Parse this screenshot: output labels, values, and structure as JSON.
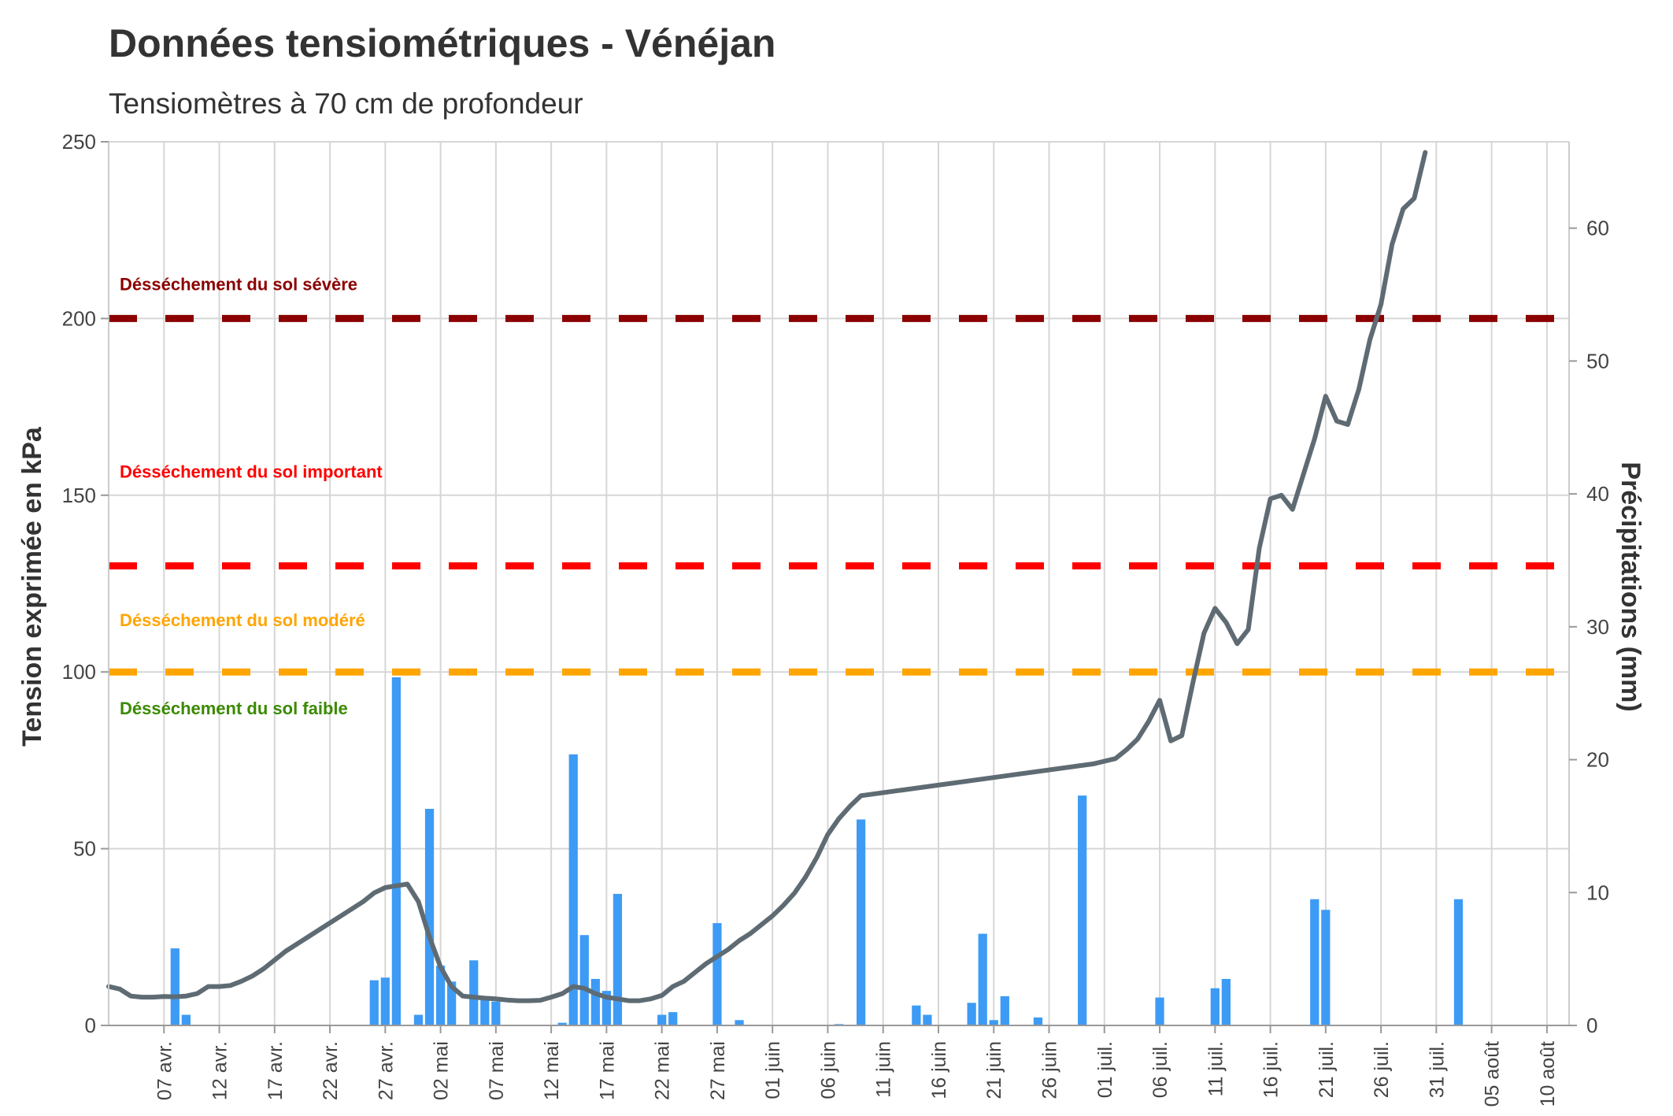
{
  "chart_data": {
    "type": "bar+line",
    "title": "Données tensiométriques - Vénéjan",
    "subtitle": "Tensiomètres à 70 cm de profondeur",
    "ylabel_left": "Tension exprimée en kPa",
    "ylabel_right": "Précipitations (mm)",
    "ylim_left": [
      0,
      250
    ],
    "ylim_right": [
      0,
      66.5
    ],
    "xlim": [
      "2023-04-02",
      "2023-08-12"
    ],
    "grid": true,
    "left_ticks": [
      "0",
      "50",
      "100",
      "150",
      "200",
      "250"
    ],
    "left_tick_values": [
      0,
      50,
      100,
      150,
      200,
      250
    ],
    "right_ticks": [
      "0",
      "10",
      "20",
      "30",
      "40",
      "50",
      "60"
    ],
    "right_tick_values": [
      0,
      10,
      20,
      30,
      40,
      50,
      60
    ],
    "x_ticks": [
      {
        "date": "2023-04-07",
        "label": "07 avr."
      },
      {
        "date": "2023-04-12",
        "label": "12 avr."
      },
      {
        "date": "2023-04-17",
        "label": "17 avr."
      },
      {
        "date": "2023-04-22",
        "label": "22 avr."
      },
      {
        "date": "2023-04-27",
        "label": "27 avr."
      },
      {
        "date": "2023-05-02",
        "label": "02 mai"
      },
      {
        "date": "2023-05-07",
        "label": "07 mai"
      },
      {
        "date": "2023-05-12",
        "label": "12 mai"
      },
      {
        "date": "2023-05-17",
        "label": "17 mai"
      },
      {
        "date": "2023-05-22",
        "label": "22 mai"
      },
      {
        "date": "2023-05-27",
        "label": "27 mai"
      },
      {
        "date": "2023-06-01",
        "label": "01 juin"
      },
      {
        "date": "2023-06-06",
        "label": "06 juin"
      },
      {
        "date": "2023-06-11",
        "label": "11 juin"
      },
      {
        "date": "2023-06-16",
        "label": "16 juin"
      },
      {
        "date": "2023-06-21",
        "label": "21 juin"
      },
      {
        "date": "2023-06-26",
        "label": "26 juin"
      },
      {
        "date": "2023-07-01",
        "label": "01 juil."
      },
      {
        "date": "2023-07-06",
        "label": "06 juil."
      },
      {
        "date": "2023-07-11",
        "label": "11 juil."
      },
      {
        "date": "2023-07-16",
        "label": "16 juil."
      },
      {
        "date": "2023-07-21",
        "label": "21 juil."
      },
      {
        "date": "2023-07-26",
        "label": "26 juil."
      },
      {
        "date": "2023-07-31",
        "label": "31 juil."
      },
      {
        "date": "2023-08-05",
        "label": "05 août"
      },
      {
        "date": "2023-08-10",
        "label": "10 août"
      }
    ],
    "thresholds": [
      {
        "label": "Désséchement du sol sévère",
        "value": 200,
        "color": "#8b0000",
        "label_value": 208
      },
      {
        "label": "Désséchement du sol important",
        "value": 130,
        "color": "#ff0000",
        "label_value": 155
      },
      {
        "label": "Désséchement du sol modéré",
        "value": 100,
        "color": "#ffa500",
        "label_value": 113
      },
      {
        "label": "Désséchement du sol faible",
        "value": null,
        "color": "#3a8a00",
        "label_value": 88
      }
    ],
    "series": [
      {
        "type": "bar",
        "axis": "right",
        "color": "#3d9bf5",
        "data": [
          {
            "date": "2023-04-08",
            "value": 5.8
          },
          {
            "date": "2023-04-09",
            "value": 0.8
          },
          {
            "date": "2023-04-26",
            "value": 3.4
          },
          {
            "date": "2023-04-27",
            "value": 3.6
          },
          {
            "date": "2023-04-28",
            "value": 26.2
          },
          {
            "date": "2023-04-30",
            "value": 0.8
          },
          {
            "date": "2023-05-01",
            "value": 16.3
          },
          {
            "date": "2023-05-02",
            "value": 4.5
          },
          {
            "date": "2023-05-03",
            "value": 3.3
          },
          {
            "date": "2023-05-05",
            "value": 4.9
          },
          {
            "date": "2023-05-06",
            "value": 1.9
          },
          {
            "date": "2023-05-07",
            "value": 1.8
          },
          {
            "date": "2023-05-13",
            "value": 0.2
          },
          {
            "date": "2023-05-14",
            "value": 20.4
          },
          {
            "date": "2023-05-15",
            "value": 6.8
          },
          {
            "date": "2023-05-16",
            "value": 3.5
          },
          {
            "date": "2023-05-17",
            "value": 2.6
          },
          {
            "date": "2023-05-18",
            "value": 9.9
          },
          {
            "date": "2023-05-22",
            "value": 0.8
          },
          {
            "date": "2023-05-23",
            "value": 1.0
          },
          {
            "date": "2023-05-27",
            "value": 7.7
          },
          {
            "date": "2023-05-29",
            "value": 0.4
          },
          {
            "date": "2023-06-07",
            "value": 0.1
          },
          {
            "date": "2023-06-09",
            "value": 15.5
          },
          {
            "date": "2023-06-14",
            "value": 1.5
          },
          {
            "date": "2023-06-15",
            "value": 0.8
          },
          {
            "date": "2023-06-19",
            "value": 1.7
          },
          {
            "date": "2023-06-20",
            "value": 6.9
          },
          {
            "date": "2023-06-21",
            "value": 0.4
          },
          {
            "date": "2023-06-22",
            "value": 2.2
          },
          {
            "date": "2023-06-25",
            "value": 0.6
          },
          {
            "date": "2023-06-29",
            "value": 17.3
          },
          {
            "date": "2023-07-06",
            "value": 2.1
          },
          {
            "date": "2023-07-11",
            "value": 2.8
          },
          {
            "date": "2023-07-12",
            "value": 3.5
          },
          {
            "date": "2023-07-20",
            "value": 9.5
          },
          {
            "date": "2023-07-21",
            "value": 8.7
          },
          {
            "date": "2023-08-02",
            "value": 9.5
          }
        ]
      },
      {
        "type": "line",
        "axis": "left",
        "color": "#5f6b73",
        "data": [
          {
            "date": "2023-04-02",
            "value": 11
          },
          {
            "date": "2023-04-03",
            "value": 10.3
          },
          {
            "date": "2023-04-04",
            "value": 8.3
          },
          {
            "date": "2023-04-05",
            "value": 8.0
          },
          {
            "date": "2023-04-06",
            "value": 8.0
          },
          {
            "date": "2023-04-07",
            "value": 8.2
          },
          {
            "date": "2023-04-08",
            "value": 8.1
          },
          {
            "date": "2023-04-09",
            "value": 8.3
          },
          {
            "date": "2023-04-10",
            "value": 9.0
          },
          {
            "date": "2023-04-11",
            "value": 11.0
          },
          {
            "date": "2023-04-12",
            "value": 11.0
          },
          {
            "date": "2023-04-13",
            "value": 11.3
          },
          {
            "date": "2023-04-14",
            "value": 12.5
          },
          {
            "date": "2023-04-15",
            "value": 14.0
          },
          {
            "date": "2023-04-16",
            "value": 16.0
          },
          {
            "date": "2023-04-17",
            "value": 18.5
          },
          {
            "date": "2023-04-18",
            "value": 21.0
          },
          {
            "date": "2023-04-19",
            "value": 23.0
          },
          {
            "date": "2023-04-20",
            "value": 25.0
          },
          {
            "date": "2023-04-21",
            "value": 27.0
          },
          {
            "date": "2023-04-22",
            "value": 29.0
          },
          {
            "date": "2023-04-23",
            "value": 31.0
          },
          {
            "date": "2023-04-24",
            "value": 33.0
          },
          {
            "date": "2023-04-25",
            "value": 35.0
          },
          {
            "date": "2023-04-26",
            "value": 37.5
          },
          {
            "date": "2023-04-27",
            "value": 39.0
          },
          {
            "date": "2023-04-28",
            "value": 39.5
          },
          {
            "date": "2023-04-29",
            "value": 40.0
          },
          {
            "date": "2023-04-30",
            "value": 35.0
          },
          {
            "date": "2023-05-01",
            "value": 25.0
          },
          {
            "date": "2023-05-02",
            "value": 16.5
          },
          {
            "date": "2023-05-03",
            "value": 11.0
          },
          {
            "date": "2023-05-04",
            "value": 8.3
          },
          {
            "date": "2023-05-05",
            "value": 8.0
          },
          {
            "date": "2023-05-06",
            "value": 7.7
          },
          {
            "date": "2023-05-07",
            "value": 7.5
          },
          {
            "date": "2023-05-08",
            "value": 7.2
          },
          {
            "date": "2023-05-09",
            "value": 7.0
          },
          {
            "date": "2023-05-10",
            "value": 7.0
          },
          {
            "date": "2023-05-11",
            "value": 7.1
          },
          {
            "date": "2023-05-12",
            "value": 8.0
          },
          {
            "date": "2023-05-13",
            "value": 9.0
          },
          {
            "date": "2023-05-14",
            "value": 11.0
          },
          {
            "date": "2023-05-15",
            "value": 10.5
          },
          {
            "date": "2023-05-16",
            "value": 9.0
          },
          {
            "date": "2023-05-17",
            "value": 8.0
          },
          {
            "date": "2023-05-18",
            "value": 7.5
          },
          {
            "date": "2023-05-19",
            "value": 7.0
          },
          {
            "date": "2023-05-20",
            "value": 7.0
          },
          {
            "date": "2023-05-21",
            "value": 7.5
          },
          {
            "date": "2023-05-22",
            "value": 8.5
          },
          {
            "date": "2023-05-23",
            "value": 11.0
          },
          {
            "date": "2023-05-24",
            "value": 12.5
          },
          {
            "date": "2023-05-25",
            "value": 15.0
          },
          {
            "date": "2023-05-26",
            "value": 17.5
          },
          {
            "date": "2023-05-27",
            "value": 19.5
          },
          {
            "date": "2023-05-28",
            "value": 21.5
          },
          {
            "date": "2023-05-29",
            "value": 24.0
          },
          {
            "date": "2023-05-30",
            "value": 26.0
          },
          {
            "date": "2023-05-31",
            "value": 28.5
          },
          {
            "date": "2023-06-01",
            "value": 31.0
          },
          {
            "date": "2023-06-02",
            "value": 34.0
          },
          {
            "date": "2023-06-03",
            "value": 37.5
          },
          {
            "date": "2023-06-04",
            "value": 42.0
          },
          {
            "date": "2023-06-05",
            "value": 47.5
          },
          {
            "date": "2023-06-06",
            "value": 54.0
          },
          {
            "date": "2023-06-07",
            "value": 58.5
          },
          {
            "date": "2023-06-08",
            "value": 62.0
          },
          {
            "date": "2023-06-09",
            "value": 65.0
          },
          {
            "date": "2023-06-30",
            "value": 74.0
          },
          {
            "date": "2023-07-02",
            "value": 75.5
          },
          {
            "date": "2023-07-03",
            "value": 78.0
          },
          {
            "date": "2023-07-04",
            "value": 81.0
          },
          {
            "date": "2023-07-05",
            "value": 86.0
          },
          {
            "date": "2023-07-06",
            "value": 92.0
          },
          {
            "date": "2023-07-07",
            "value": 80.5
          },
          {
            "date": "2023-07-08",
            "value": 82.0
          },
          {
            "date": "2023-07-09",
            "value": 97.0
          },
          {
            "date": "2023-07-10",
            "value": 111.0
          },
          {
            "date": "2023-07-11",
            "value": 118.0
          },
          {
            "date": "2023-07-12",
            "value": 114.0
          },
          {
            "date": "2023-07-13",
            "value": 108.0
          },
          {
            "date": "2023-07-14",
            "value": 112.0
          },
          {
            "date": "2023-07-15",
            "value": 135.0
          },
          {
            "date": "2023-07-16",
            "value": 149.0
          },
          {
            "date": "2023-07-17",
            "value": 150.0
          },
          {
            "date": "2023-07-18",
            "value": 146.0
          },
          {
            "date": "2023-07-19",
            "value": 156.0
          },
          {
            "date": "2023-07-20",
            "value": 166.0
          },
          {
            "date": "2023-07-21",
            "value": 178.0
          },
          {
            "date": "2023-07-22",
            "value": 171.0
          },
          {
            "date": "2023-07-23",
            "value": 170.0
          },
          {
            "date": "2023-07-24",
            "value": 180.0
          },
          {
            "date": "2023-07-25",
            "value": 194.0
          },
          {
            "date": "2023-07-26",
            "value": 204.0
          },
          {
            "date": "2023-07-27",
            "value": 221.0
          },
          {
            "date": "2023-07-28",
            "value": 231.0
          },
          {
            "date": "2023-07-29",
            "value": 234.0
          },
          {
            "date": "2023-07-30",
            "value": 247.0
          }
        ]
      }
    ]
  }
}
